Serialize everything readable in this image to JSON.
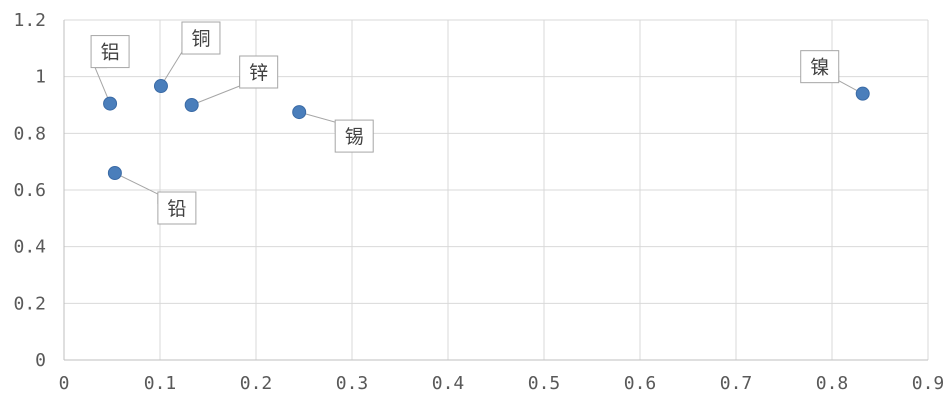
{
  "chart_data": {
    "type": "scatter",
    "xlim": [
      0,
      0.9
    ],
    "ylim": [
      0,
      1.2
    ],
    "x_ticks": [
      "0",
      "0.1",
      "0.2",
      "0.3",
      "0.4",
      "0.5",
      "0.6",
      "0.7",
      "0.8",
      "0.9"
    ],
    "y_ticks": [
      "0",
      "0.2",
      "0.4",
      "0.6",
      "0.8",
      "1",
      "1.2"
    ],
    "grid": true,
    "legend": "none",
    "points": [
      {
        "x": 0.048,
        "y": 0.905,
        "label": "铝"
      },
      {
        "x": 0.101,
        "y": 0.967,
        "label": "铜"
      },
      {
        "x": 0.133,
        "y": 0.9,
        "label": "锌"
      },
      {
        "x": 0.245,
        "y": 0.875,
        "label": "锡"
      },
      {
        "x": 0.053,
        "y": 0.66,
        "label": "铅"
      },
      {
        "x": 0.832,
        "y": 0.94,
        "label": "镍"
      }
    ],
    "color": "#4a7ebb"
  }
}
